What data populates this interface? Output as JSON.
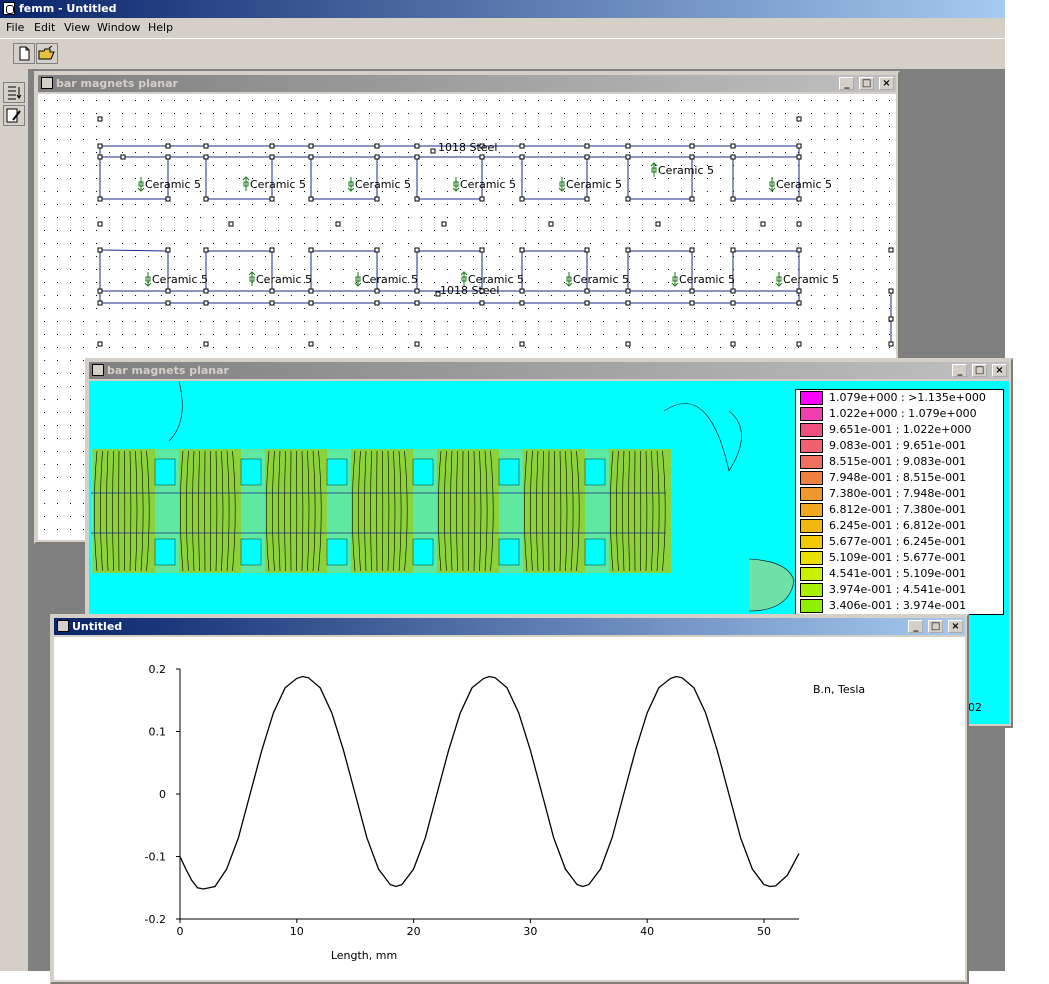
{
  "app": {
    "title": "femm - Untitled"
  },
  "menu": [
    "File",
    "Edit",
    "View",
    "Window",
    "Help"
  ],
  "toolbar": {
    "buttons": [
      "new-file-icon",
      "open-folder-icon"
    ],
    "side_buttons": [
      "input-icon",
      "edit-icon"
    ]
  },
  "window_buttons": {
    "minimize": "_",
    "maximize": "□",
    "close": "×"
  },
  "preprocessor": {
    "title": "bar magnets planar",
    "top_steel": "1018 Steel",
    "bottom_steel": "1018 Steel",
    "material": "Ceramic 5",
    "top_labels": [
      "Ceramic 5",
      "Ceramic 5",
      "Ceramic 5",
      "Ceramic 5",
      "Ceramic 5",
      "Ceramic 5",
      "Ceramic 5"
    ],
    "top_directions": [
      "down",
      "up",
      "down",
      "down",
      "down",
      "up",
      "down"
    ],
    "bottom_labels": [
      "Ceramic 5",
      "Ceramic 5",
      "Ceramic 5",
      "Ceramic 5",
      "Ceramic 5",
      "Ceramic 5",
      "Ceramic 5"
    ],
    "bottom_directions": [
      "down",
      "up",
      "down",
      "up",
      "down",
      "down",
      "down"
    ]
  },
  "postprocessor": {
    "title": "bar magnets planar",
    "legend": [
      {
        "label": "1.079e+000 : >1.135e+000",
        "color": "#ff00ff"
      },
      {
        "label": "1.022e+000 : 1.079e+000",
        "color": "#f040b0"
      },
      {
        "label": "9.651e-001 : 1.022e+000",
        "color": "#f05080"
      },
      {
        "label": "9.083e-001 : 9.651e-001",
        "color": "#f06070"
      },
      {
        "label": "8.515e-001 : 9.083e-001",
        "color": "#f07060"
      },
      {
        "label": "7.948e-001 : 8.515e-001",
        "color": "#f08040"
      },
      {
        "label": "7.380e-001 : 7.948e-001",
        "color": "#f09830"
      },
      {
        "label": "6.812e-001 : 7.380e-001",
        "color": "#f0a820"
      },
      {
        "label": "6.245e-001 : 6.812e-001",
        "color": "#f0b810"
      },
      {
        "label": "5.677e-001 : 6.245e-001",
        "color": "#f0c800"
      },
      {
        "label": "5.109e-001 : 5.677e-001",
        "color": "#e8e000"
      },
      {
        "label": "4.541e-001 : 5.109e-001",
        "color": "#c8f000"
      },
      {
        "label": "3.974e-001 : 4.541e-001",
        "color": "#a8f000"
      },
      {
        "label": "3.406e-001 : 3.974e-001",
        "color": "#90f000"
      }
    ],
    "legend_tail": "02",
    "colors": {
      "field": "#00ffff",
      "magnet": "#8cd23c",
      "steel": "#56e6a0"
    }
  },
  "plot_window": {
    "title": "Untitled"
  },
  "chart_data": {
    "type": "line",
    "title": "",
    "series_label": "B.n, Tesla",
    "xlabel": "Length, mm",
    "ylabel": "",
    "xlim": [
      0,
      53
    ],
    "ylim": [
      -0.2,
      0.2
    ],
    "xticks": [
      0,
      10,
      20,
      30,
      40,
      50
    ],
    "yticks": [
      0.2,
      0.1,
      0,
      -0.1,
      -0.2
    ],
    "ytick_labels": [
      "0.2",
      "0.1",
      "0",
      "-0.1",
      "-0.2"
    ],
    "series": [
      {
        "x": [
          0,
          0.5,
          1,
          1.5,
          2,
          3,
          4,
          5,
          6,
          7,
          8,
          9,
          10,
          10.5,
          11,
          12,
          13,
          14,
          15,
          16,
          17,
          18,
          18.5,
          19,
          20,
          21,
          22,
          23,
          24,
          25,
          26,
          26.5,
          27,
          28,
          29,
          30,
          31,
          32,
          33,
          34,
          34.5,
          35,
          36,
          37,
          38,
          39,
          40,
          41,
          42,
          42.5,
          43,
          44,
          45,
          46,
          47,
          48,
          49,
          50,
          50.5,
          51,
          52,
          53
        ],
        "y": [
          -0.1,
          -0.12,
          -0.138,
          -0.15,
          -0.152,
          -0.148,
          -0.12,
          -0.07,
          0,
          0.07,
          0.13,
          0.17,
          0.185,
          0.188,
          0.186,
          0.17,
          0.13,
          0.07,
          0,
          -0.07,
          -0.12,
          -0.145,
          -0.148,
          -0.145,
          -0.12,
          -0.07,
          0,
          0.07,
          0.13,
          0.17,
          0.185,
          0.188,
          0.186,
          0.17,
          0.13,
          0.07,
          0,
          -0.07,
          -0.12,
          -0.145,
          -0.148,
          -0.145,
          -0.12,
          -0.07,
          0,
          0.07,
          0.13,
          0.17,
          0.185,
          0.188,
          0.186,
          0.17,
          0.13,
          0.07,
          0,
          -0.07,
          -0.12,
          -0.145,
          -0.148,
          -0.147,
          -0.13,
          -0.095
        ]
      }
    ]
  }
}
